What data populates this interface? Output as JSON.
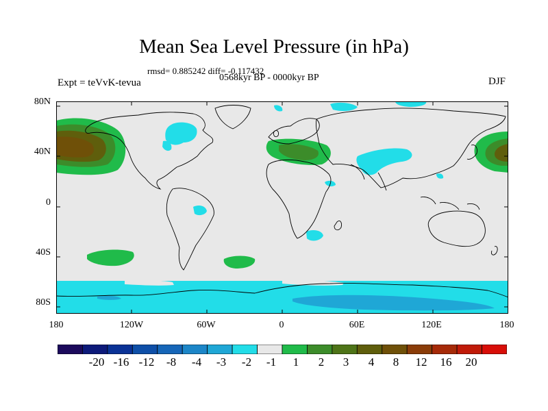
{
  "title": "Mean Sea Level Pressure (in hPa)",
  "stats": "rmsd= 0.885242 diff= -0.117432",
  "period": "0568kyr BP - 0000kyr BP",
  "experiment": "Expt = teVvK-tevua",
  "season": "DJF",
  "lat_ticks": [
    "80N",
    "40N",
    "0",
    "40S",
    "80S"
  ],
  "lon_ticks": [
    "180",
    "120W",
    "60W",
    "0",
    "60E",
    "120E",
    "180"
  ],
  "colorbar": {
    "colors": [
      "#1c0a5c",
      "#0d1a7a",
      "#0a3296",
      "#0e4fa8",
      "#1666b8",
      "#1c86c8",
      "#1fa7d6",
      "#22dde8",
      "#e8e8e8",
      "#20bb4a",
      "#3c8c2a",
      "#4e7418",
      "#5f5e0c",
      "#6f5008",
      "#8a3c08",
      "#a62a08",
      "#c01a08",
      "#d80e08"
    ],
    "labels": [
      "-20",
      "-16",
      "-12",
      "-8",
      "-4",
      "-3",
      "-2",
      "-1",
      "1",
      "2",
      "3",
      "4",
      "8",
      "12",
      "16",
      "20"
    ]
  },
  "map": {
    "background": "#e8e8e8",
    "colors": {
      "cyan": "#22dde8",
      "lightblue": "#1fa7d6",
      "green": "#20bb4a",
      "darkgreen": "#3c8c2a",
      "olive": "#5f5e0c",
      "brown": "#6f5008"
    }
  }
}
